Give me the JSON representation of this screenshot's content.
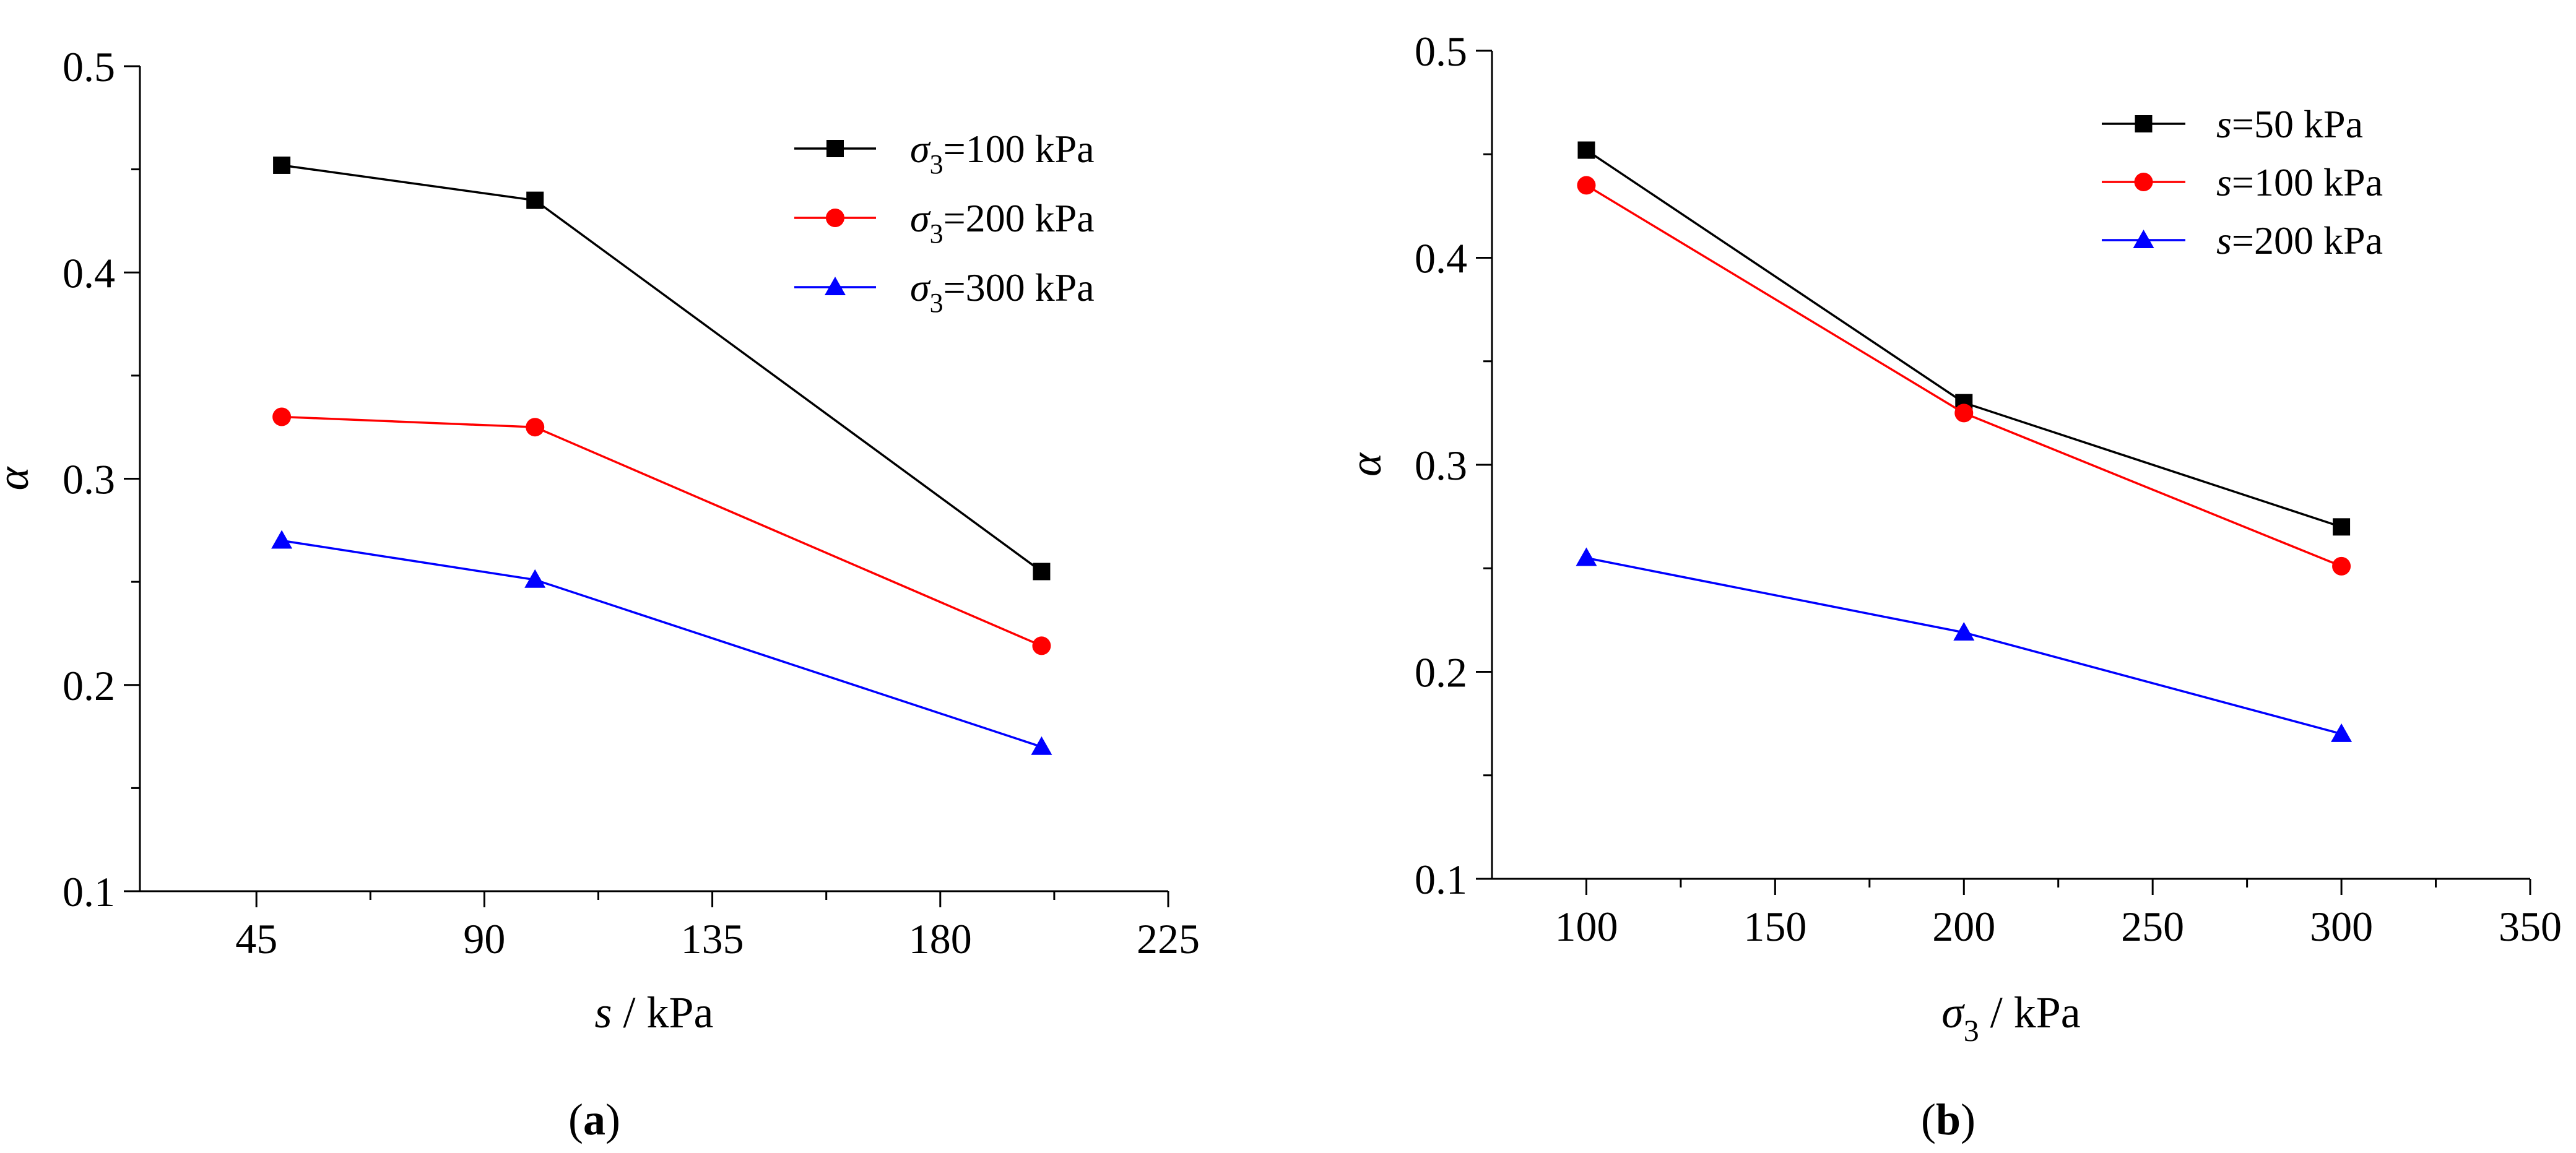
{
  "chart_data": [
    {
      "panel_label": "a",
      "type": "line",
      "title": "",
      "xlabel": {
        "var": "s",
        "unit": " / kPa"
      },
      "ylabel": "α",
      "x_ticks": [
        45,
        90,
        135,
        180,
        225
      ],
      "y_ticks": [
        0.1,
        0.2,
        0.3,
        0.4,
        0.5
      ],
      "x_tick_labels": [
        "45",
        "90",
        "135",
        "180",
        "225"
      ],
      "y_tick_labels": [
        "0.1",
        "0.2",
        "0.3",
        "0.4",
        "0.5"
      ],
      "xlim": [
        22,
        225
      ],
      "ylim": [
        0.1,
        0.5
      ],
      "grid": false,
      "legend_position": "top-right",
      "x": [
        50,
        100,
        200
      ],
      "series": [
        {
          "name": "σ3=100 kPa",
          "legend": {
            "var": "σ",
            "sub": "3",
            "rest": "=100 kPa"
          },
          "color": "#000000",
          "marker": "square",
          "values": [
            0.452,
            0.435,
            0.255
          ]
        },
        {
          "name": "σ3=200 kPa",
          "legend": {
            "var": "σ",
            "sub": "3",
            "rest": "=200 kPa"
          },
          "color": "#ff0000",
          "marker": "circle",
          "values": [
            0.33,
            0.325,
            0.219
          ]
        },
        {
          "name": "σ3=300 kPa",
          "legend": {
            "var": "σ",
            "sub": "3",
            "rest": "=300 kPa"
          },
          "color": "#0000ff",
          "marker": "triangle",
          "values": [
            0.27,
            0.251,
            0.17
          ]
        }
      ]
    },
    {
      "panel_label": "b",
      "type": "line",
      "title": "",
      "xlabel": {
        "var": "σ",
        "sub": "3",
        "unit": " / kPa"
      },
      "ylabel": "α",
      "x_ticks": [
        100,
        150,
        200,
        250,
        300,
        350
      ],
      "y_ticks": [
        0.1,
        0.2,
        0.3,
        0.4,
        0.5
      ],
      "x_tick_labels": [
        "100",
        "150",
        "200",
        "250",
        "300",
        "350"
      ],
      "y_tick_labels": [
        "0.1",
        "0.2",
        "0.3",
        "0.4",
        "0.5"
      ],
      "xlim": [
        75,
        350
      ],
      "ylim": [
        0.1,
        0.5
      ],
      "grid": false,
      "legend_position": "top-right",
      "x": [
        100,
        200,
        300
      ],
      "series": [
        {
          "name": "s=50 kPa",
          "legend": {
            "var": "s",
            "sub": "",
            "rest": "=50 kPa"
          },
          "color": "#000000",
          "marker": "square",
          "values": [
            0.452,
            0.33,
            0.27
          ]
        },
        {
          "name": "s=100 kPa",
          "legend": {
            "var": "s",
            "sub": "",
            "rest": "=100 kPa"
          },
          "color": "#ff0000",
          "marker": "circle",
          "values": [
            0.435,
            0.325,
            0.251
          ]
        },
        {
          "name": "s=200 kPa",
          "legend": {
            "var": "s",
            "sub": "",
            "rest": "=200 kPa"
          },
          "color": "#0000ff",
          "marker": "triangle",
          "values": [
            0.255,
            0.219,
            0.17
          ]
        }
      ]
    }
  ]
}
